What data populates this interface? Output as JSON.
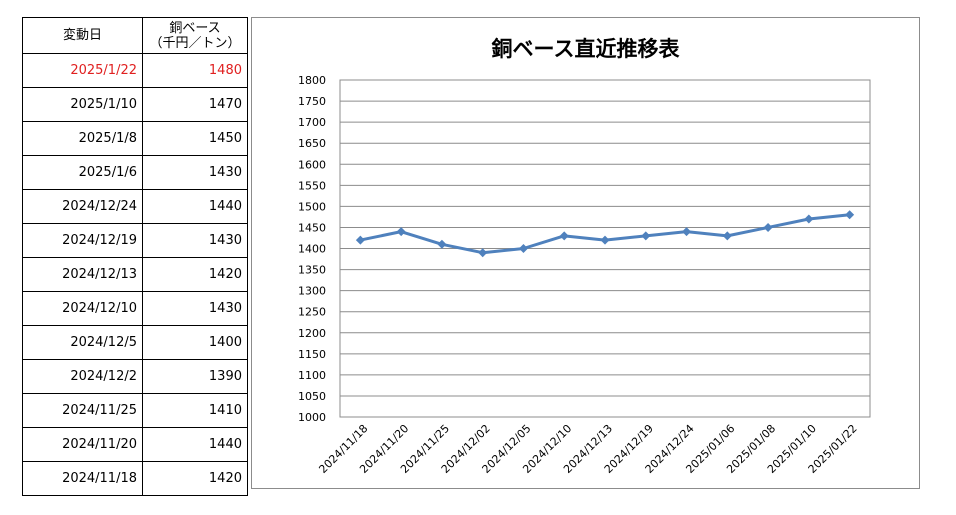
{
  "table": {
    "header_date": "変動日",
    "header_value_line1": "銅ベース",
    "header_value_line2": "（千円／トン）",
    "highlight_color": "#e02020",
    "rows": [
      {
        "date": "2025/1/22",
        "value": "1480"
      },
      {
        "date": "2025/1/10",
        "value": "1470"
      },
      {
        "date": "2025/1/8",
        "value": "1450"
      },
      {
        "date": "2025/1/6",
        "value": "1430"
      },
      {
        "date": "2024/12/24",
        "value": "1440"
      },
      {
        "date": "2024/12/19",
        "value": "1430"
      },
      {
        "date": "2024/12/13",
        "value": "1420"
      },
      {
        "date": "2024/12/10",
        "value": "1430"
      },
      {
        "date": "2024/12/5",
        "value": "1400"
      },
      {
        "date": "2024/12/2",
        "value": "1390"
      },
      {
        "date": "2024/11/25",
        "value": "1410"
      },
      {
        "date": "2024/11/20",
        "value": "1440"
      },
      {
        "date": "2024/11/18",
        "value": "1420"
      }
    ]
  },
  "chart_data": {
    "type": "line",
    "title": "銅ベース直近推移表",
    "categories": [
      "2024/11/18",
      "2024/11/20",
      "2024/11/25",
      "2024/12/02",
      "2024/12/05",
      "2024/12/10",
      "2024/12/13",
      "2024/12/19",
      "2024/12/24",
      "2025/01/06",
      "2025/01/08",
      "2025/01/10",
      "2025/01/22"
    ],
    "series": [
      {
        "values": [
          1420,
          1440,
          1410,
          1390,
          1400,
          1430,
          1420,
          1430,
          1440,
          1430,
          1450,
          1470,
          1480
        ]
      }
    ],
    "ylim": [
      1000,
      1800
    ],
    "ystep": 50,
    "grid": true,
    "legend": "none",
    "line_color": "#4f81bd",
    "marker": "diamond"
  }
}
